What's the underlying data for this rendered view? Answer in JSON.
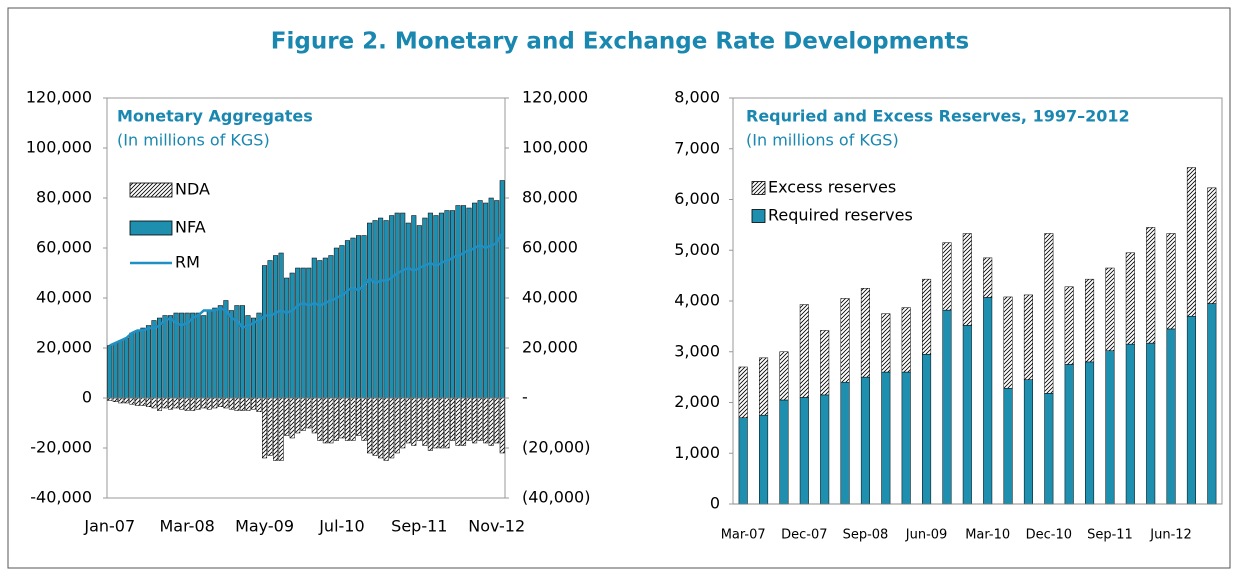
{
  "title": "Figure 2. Monetary and Exchange Rate Developments",
  "chart_data": [
    {
      "type": "bar",
      "title": "Monetary Aggregates",
      "subtitle": "(In millions of KGS)",
      "categories": [
        "Jan-07",
        null,
        null,
        null,
        null,
        null,
        null,
        null,
        null,
        null,
        null,
        null,
        null,
        null,
        "Mar-08",
        null,
        null,
        null,
        null,
        null,
        null,
        null,
        null,
        null,
        null,
        null,
        null,
        null,
        "May-09",
        null,
        null,
        null,
        null,
        null,
        null,
        null,
        null,
        null,
        null,
        null,
        null,
        null,
        "Jul-10",
        null,
        null,
        null,
        null,
        null,
        null,
        null,
        null,
        null,
        null,
        null,
        null,
        null,
        "Sep-11",
        null,
        null,
        null,
        null,
        null,
        null,
        null,
        null,
        null,
        null,
        null,
        null,
        null,
        "Nov-12",
        null
      ],
      "series": [
        {
          "name": "NDA",
          "type": "bar",
          "color": "#ffffff",
          "hatch": true,
          "values": [
            -1000,
            -1500,
            -2000,
            -2000,
            -2500,
            -3000,
            -3000,
            -3500,
            -4000,
            -5000,
            -4000,
            -4500,
            -4000,
            -4500,
            -5000,
            -5000,
            -4500,
            -4000,
            -4500,
            -4000,
            -3500,
            -4000,
            -4500,
            -5000,
            -5000,
            -5000,
            -4500,
            -5500,
            -24000,
            -23000,
            -25000,
            -25000,
            -15000,
            -16000,
            -14000,
            -13000,
            -12000,
            -14000,
            -17000,
            -18000,
            -18000,
            -17000,
            -16000,
            -17000,
            -17000,
            -15000,
            -17000,
            -22000,
            -23000,
            -24000,
            -25000,
            -24000,
            -22000,
            -20000,
            -18000,
            -19000,
            -17000,
            -19000,
            -21000,
            -20000,
            -20000,
            -20000,
            -17000,
            -19000,
            -19000,
            -17000,
            -18000,
            -17000,
            -18000,
            -19000,
            -18000,
            -22000
          ]
        },
        {
          "name": "NFA",
          "type": "bar",
          "color": "#1f8fb0",
          "values": [
            21000,
            22000,
            23000,
            24000,
            26000,
            27000,
            28000,
            29000,
            31000,
            32000,
            33000,
            33000,
            34000,
            34000,
            34000,
            34000,
            34000,
            33000,
            35000,
            36000,
            37000,
            39000,
            35000,
            37000,
            37000,
            33000,
            32000,
            34000,
            53000,
            55000,
            57000,
            58000,
            48000,
            50000,
            52000,
            52000,
            52000,
            56000,
            55000,
            56000,
            57000,
            60000,
            61000,
            63000,
            64000,
            65000,
            65000,
            70000,
            71000,
            72000,
            71000,
            73000,
            74000,
            74000,
            70000,
            73000,
            69000,
            72000,
            74000,
            73000,
            74000,
            75000,
            75000,
            77000,
            77000,
            76000,
            78000,
            79000,
            78000,
            80000,
            79000,
            87000
          ]
        },
        {
          "name": "RM",
          "type": "line",
          "color": "#1f8fc4",
          "values": [
            21000,
            22000,
            23000,
            24000,
            26000,
            27000,
            27000,
            28000,
            28000,
            29000,
            31000,
            32000,
            30000,
            29000,
            30000,
            32000,
            33000,
            35000,
            35000,
            35000,
            36000,
            35000,
            32000,
            31000,
            28000,
            29000,
            30000,
            31000,
            33000,
            33000,
            34000,
            35000,
            34000,
            35000,
            37000,
            38000,
            37000,
            38000,
            37000,
            38000,
            39000,
            40000,
            41000,
            43000,
            44000,
            43000,
            45000,
            48000,
            46000,
            47000,
            47000,
            48000,
            50000,
            51000,
            52000,
            51000,
            52000,
            53000,
            54000,
            53000,
            54000,
            55000,
            56000,
            57000,
            58000,
            59000,
            60000,
            61000,
            60000,
            61000,
            62000,
            66000
          ]
        }
      ],
      "ylim": [
        -40000,
        120000
      ],
      "yticks": [
        {
          "value": -40000,
          "label": "-40,000"
        },
        {
          "value": -20000,
          "label": "-20,000"
        },
        0,
        {
          "value": 20000,
          "label": "20,000"
        },
        {
          "value": 40000,
          "label": "40,000"
        },
        {
          "value": 60000,
          "label": "60,000"
        },
        {
          "value": 80000,
          "label": "80,000"
        },
        {
          "value": 100000,
          "label": "100,000"
        },
        {
          "value": 120000,
          "label": "120,000"
        }
      ],
      "y2lim": [
        -40000,
        120000
      ],
      "y2ticks": [
        {
          "value": -40000,
          "label": "(40,000)"
        },
        {
          "value": -20000,
          "label": "(20,000)"
        },
        {
          "value": 0,
          "label": "-"
        },
        {
          "value": 20000,
          "label": "20,000"
        },
        {
          "value": 40000,
          "label": "40,000"
        },
        {
          "value": 60000,
          "label": "60,000"
        },
        {
          "value": 80000,
          "label": "80,000"
        },
        {
          "value": 100000,
          "label": "100,000"
        },
        {
          "value": 120000,
          "label": "120,000"
        }
      ]
    },
    {
      "type": "stacked_bar",
      "title": "Requried and Excess Reserves, 1997–2012",
      "subtitle": "(In millions of KGS)",
      "categories": [
        "Mar-07",
        null,
        null,
        "Dec-07",
        null,
        null,
        "Sep-08",
        null,
        null,
        "Jun-09",
        null,
        null,
        "Mar-10",
        null,
        null,
        "Dec-10",
        null,
        null,
        "Sep-11",
        null,
        null,
        "Jun-12",
        null,
        null
      ],
      "series": [
        {
          "name": "Required reserves",
          "type": "bar",
          "color": "#1f8fb0",
          "values": [
            1700,
            1750,
            2050,
            2100,
            2150,
            2400,
            2500,
            2600,
            2600,
            2950,
            3820,
            3520,
            4070,
            2280,
            2450,
            2180,
            2750,
            2800,
            3020,
            3150,
            3170,
            3450,
            3700,
            3950
          ]
        },
        {
          "name": "Excess reserves",
          "type": "bar",
          "color": "#ffffff",
          "hatch": true,
          "values": [
            1000,
            1130,
            950,
            1830,
            1270,
            1650,
            1750,
            1150,
            1270,
            1480,
            1330,
            1810,
            780,
            1800,
            1670,
            3150,
            1530,
            1630,
            1630,
            1800,
            2280,
            1880,
            2930,
            2280
          ]
        }
      ],
      "ylim": [
        0,
        8000
      ],
      "yticks": [
        0,
        {
          "value": 1000,
          "label": "1,000"
        },
        {
          "value": 2000,
          "label": "2,000"
        },
        {
          "value": 3000,
          "label": "3,000"
        },
        {
          "value": 4000,
          "label": "4,000"
        },
        {
          "value": 5000,
          "label": "5,000"
        },
        {
          "value": 6000,
          "label": "6,000"
        },
        {
          "value": 7000,
          "label": "7,000"
        },
        {
          "value": 8000,
          "label": "8,000"
        }
      ]
    }
  ]
}
